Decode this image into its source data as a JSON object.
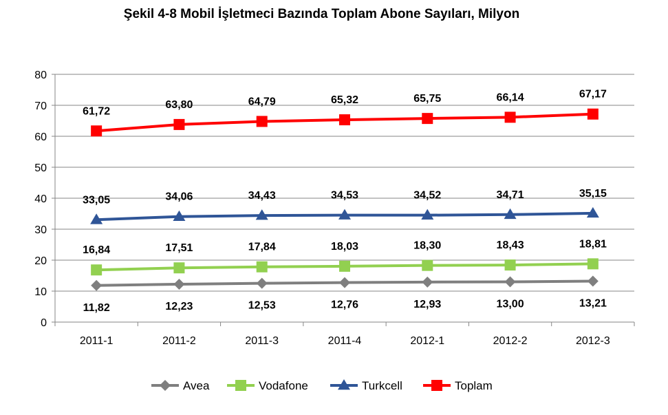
{
  "chart_data": {
    "type": "line",
    "title": "Şekil 4-8 Mobil İşletmeci Bazında Toplam Abone Sayıları, Milyon",
    "categories": [
      "2011-1",
      "2011-2",
      "2011-3",
      "2011-4",
      "2012-1",
      "2012-2",
      "2012-3"
    ],
    "ylim": [
      0,
      80
    ],
    "yticks": [
      0,
      10,
      20,
      30,
      40,
      50,
      60,
      70,
      80
    ],
    "grid": true,
    "legend": "bottom",
    "series": [
      {
        "name": "Avea",
        "color": "#7f7f7f",
        "marker": "diamond",
        "values": [
          11.82,
          12.23,
          12.53,
          12.76,
          12.93,
          13.0,
          13.21
        ],
        "labels": [
          "11,82",
          "12,23",
          "12,53",
          "12,76",
          "12,93",
          "13,00",
          "13,21"
        ]
      },
      {
        "name": "Vodafone",
        "color": "#92d050",
        "marker": "square",
        "values": [
          16.84,
          17.51,
          17.84,
          18.03,
          18.3,
          18.43,
          18.81
        ],
        "labels": [
          "16,84",
          "17,51",
          "17,84",
          "18,03",
          "18,30",
          "18,43",
          "18,81"
        ]
      },
      {
        "name": "Turkcell",
        "color": "#2f5597",
        "marker": "triangle",
        "values": [
          33.05,
          34.06,
          34.43,
          34.53,
          34.52,
          34.71,
          35.15
        ],
        "labels": [
          "33,05",
          "34,06",
          "34,43",
          "34,53",
          "34,52",
          "34,71",
          "35,15"
        ]
      },
      {
        "name": "Toplam",
        "color": "#ff0000",
        "marker": "square",
        "values": [
          61.72,
          63.8,
          64.79,
          65.32,
          65.75,
          66.14,
          67.17
        ],
        "labels": [
          "61,72",
          "63,80",
          "64,79",
          "65,32",
          "65,75",
          "66,14",
          "67,17"
        ]
      }
    ]
  }
}
